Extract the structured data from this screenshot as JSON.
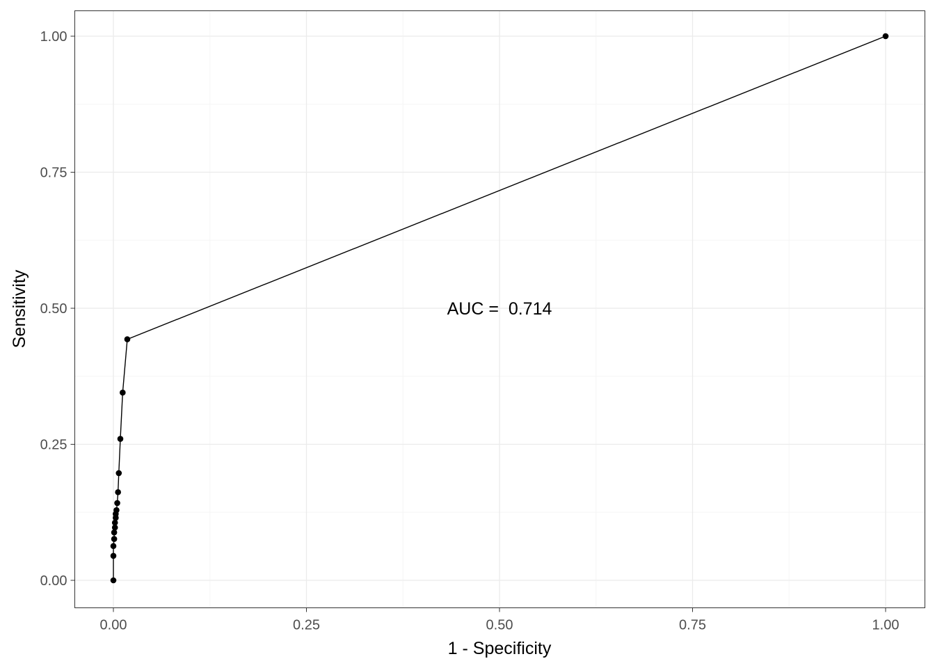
{
  "chart_data": {
    "type": "line",
    "xlabel": "1 - Specificity",
    "ylabel": "Sensitivity",
    "xlim": [
      0,
      1
    ],
    "ylim": [
      0,
      1
    ],
    "grid": true,
    "x_ticks": [
      0,
      0.25,
      0.5,
      0.75,
      1
    ],
    "y_ticks": [
      0,
      0.25,
      0.5,
      0.75,
      1
    ],
    "x_tick_labels": [
      "0.00",
      "0.25",
      "0.50",
      "0.75",
      "1.00"
    ],
    "y_tick_labels": [
      "0.00",
      "0.25",
      "0.50",
      "0.75",
      "1.00"
    ],
    "series": [
      {
        "x": [
          0.0,
          0.0,
          0.0,
          0.001,
          0.001,
          0.002,
          0.002,
          0.003,
          0.003,
          0.004,
          0.005,
          0.006,
          0.007,
          0.009,
          0.012,
          0.018,
          1.0
        ],
        "y": [
          0.0,
          0.045,
          0.063,
          0.076,
          0.088,
          0.097,
          0.106,
          0.115,
          0.122,
          0.129,
          0.142,
          0.162,
          0.197,
          0.26,
          0.345,
          0.443,
          1.0
        ]
      }
    ],
    "annotations": [
      {
        "text": "AUC =  0.714",
        "x": 0.5,
        "y": 0.5
      }
    ],
    "colors": {
      "line": "#000000",
      "grid_major": "#ebebeb",
      "grid_minor": "#f5f5f5",
      "panel_border": "#333333"
    }
  }
}
